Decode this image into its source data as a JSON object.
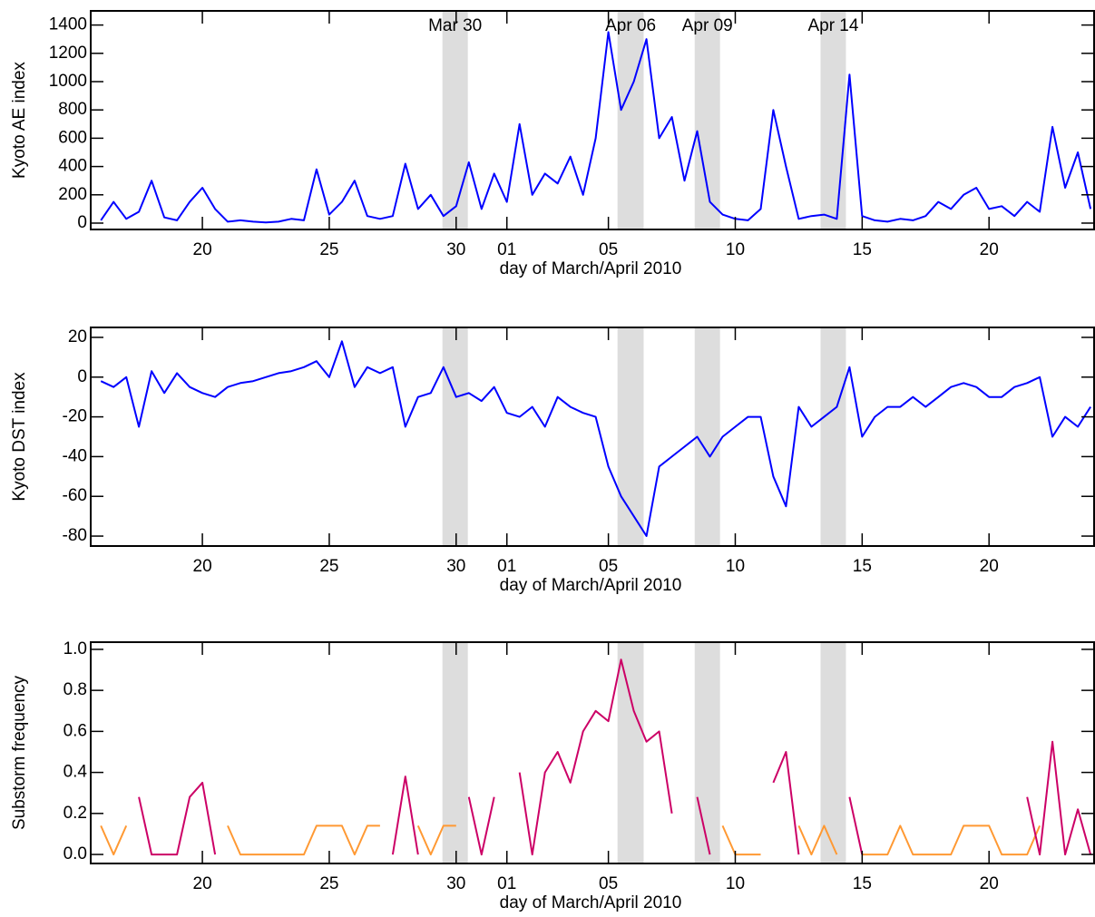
{
  "chart_data": [
    {
      "type": "line",
      "ylabel": "Kyoto AE index",
      "xlabel": "day of March/April 2010",
      "xlim": [
        15.6,
        55.14
      ],
      "ylim": [
        -45,
        1500
      ],
      "xticks": [
        20,
        25,
        30,
        {
          "value": 32,
          "label": "01"
        },
        {
          "value": 36,
          "label": "05"
        },
        {
          "value": 41,
          "label": "10"
        },
        {
          "value": 46,
          "label": "15"
        },
        {
          "value": 51,
          "label": "20"
        }
      ],
      "yticks": [
        0,
        200,
        400,
        600,
        800,
        1000,
        1200,
        1400
      ],
      "bands": [
        {
          "label": "Mar 30",
          "range": [
            29.46,
            30.46
          ]
        },
        {
          "label": "Apr 06",
          "range": [
            36.36,
            37.39
          ]
        },
        {
          "label": "Apr 09",
          "range": [
            39.4,
            40.4
          ]
        },
        {
          "label": "Apr 14",
          "range": [
            44.36,
            45.36
          ]
        }
      ],
      "band_color": "#dddddd",
      "x": [
        16,
        16.5,
        17,
        17.5,
        18,
        18.5,
        19,
        19.5,
        20,
        20.5,
        21,
        21.5,
        22,
        22.5,
        23,
        23.5,
        24,
        24.5,
        25,
        25.5,
        26,
        26.5,
        27,
        27.5,
        28,
        28.5,
        29,
        29.5,
        30,
        30.5,
        31,
        31.5,
        32,
        32.5,
        33,
        33.5,
        34,
        34.5,
        35,
        35.5,
        36,
        36.5,
        37,
        37.5,
        38,
        38.5,
        39,
        39.5,
        40,
        40.5,
        41,
        41.5,
        42,
        42.5,
        43,
        43.5,
        44,
        44.5,
        45,
        45.5,
        46,
        46.5,
        47,
        47.5,
        48,
        48.5,
        49,
        49.5,
        50,
        50.5,
        51,
        51.5,
        52,
        52.5,
        53,
        53.5,
        54,
        54.5,
        55
      ],
      "series": [
        {
          "color": "#0000ff",
          "values": [
            20,
            150,
            30,
            80,
            300,
            40,
            20,
            150,
            250,
            100,
            10,
            20,
            10,
            5,
            10,
            30,
            20,
            380,
            60,
            150,
            300,
            50,
            30,
            50,
            420,
            100,
            200,
            50,
            120,
            430,
            100,
            350,
            150,
            700,
            200,
            350,
            280,
            470,
            200,
            600,
            1350,
            800,
            1000,
            1300,
            600,
            750,
            300,
            650,
            150,
            60,
            30,
            20,
            100,
            800,
            400,
            30,
            50,
            60,
            30,
            1050,
            50,
            20,
            10,
            30,
            20,
            50,
            150,
            100,
            200,
            250,
            100,
            120,
            50,
            150,
            80,
            680,
            250,
            500,
            100
          ]
        }
      ]
    },
    {
      "type": "line",
      "ylabel": "Kyoto DST index",
      "xlabel": "day of March/April 2010",
      "xlim": [
        15.6,
        55.14
      ],
      "ylim": [
        -85,
        25
      ],
      "xticks": [
        20,
        25,
        30,
        {
          "value": 32,
          "label": "01"
        },
        {
          "value": 36,
          "label": "05"
        },
        {
          "value": 41,
          "label": "10"
        },
        {
          "value": 46,
          "label": "15"
        },
        {
          "value": 51,
          "label": "20"
        }
      ],
      "yticks": [
        -80,
        -60,
        -40,
        -20,
        0,
        20
      ],
      "bands": [
        {
          "range": [
            29.46,
            30.46
          ]
        },
        {
          "range": [
            36.36,
            37.39
          ]
        },
        {
          "range": [
            39.4,
            40.4
          ]
        },
        {
          "range": [
            44.36,
            45.36
          ]
        }
      ],
      "band_color": "#dddddd",
      "x": [
        16,
        16.5,
        17,
        17.5,
        18,
        18.5,
        19,
        19.5,
        20,
        20.5,
        21,
        21.5,
        22,
        22.5,
        23,
        23.5,
        24,
        24.5,
        25,
        25.5,
        26,
        26.5,
        27,
        27.5,
        28,
        28.5,
        29,
        29.5,
        30,
        30.5,
        31,
        31.5,
        32,
        32.5,
        33,
        33.5,
        34,
        34.5,
        35,
        35.5,
        36,
        36.5,
        37,
        37.5,
        38,
        38.5,
        39,
        39.5,
        40,
        40.5,
        41,
        41.5,
        42,
        42.5,
        43,
        43.5,
        44,
        44.5,
        45,
        45.5,
        46,
        46.5,
        47,
        47.5,
        48,
        48.5,
        49,
        49.5,
        50,
        50.5,
        51,
        51.5,
        52,
        52.5,
        53,
        53.5,
        54,
        54.5,
        55
      ],
      "series": [
        {
          "color": "#0000ff",
          "values": [
            -2,
            -5,
            0,
            -25,
            3,
            -8,
            2,
            -5,
            -8,
            -10,
            -5,
            -3,
            -2,
            0,
            2,
            3,
            5,
            8,
            0,
            18,
            -5,
            5,
            2,
            5,
            -25,
            -10,
            -8,
            5,
            -10,
            -8,
            -12,
            -5,
            -18,
            -20,
            -15,
            -25,
            -10,
            -15,
            -18,
            -20,
            -45,
            -60,
            -70,
            -80,
            -45,
            -40,
            -35,
            -30,
            -40,
            -30,
            -25,
            -20,
            -20,
            -50,
            -65,
            -15,
            -25,
            -20,
            -15,
            5,
            -30,
            -20,
            -15,
            -15,
            -10,
            -15,
            -10,
            -5,
            -3,
            -5,
            -10,
            -10,
            -5,
            -3,
            0,
            -30,
            -20,
            -25,
            -15
          ]
        }
      ]
    },
    {
      "type": "line",
      "ylabel": "Substorm frequency",
      "xlabel": "day of March/April 2010",
      "xlim": [
        15.6,
        55.14
      ],
      "ylim": [
        -0.044,
        1.035
      ],
      "xticks": [
        20,
        25,
        30,
        {
          "value": 32,
          "label": "01"
        },
        {
          "value": 36,
          "label": "05"
        },
        {
          "value": 41,
          "label": "10"
        },
        {
          "value": 46,
          "label": "15"
        },
        {
          "value": 51,
          "label": "20"
        }
      ],
      "yticks": [
        {
          "value": 0,
          "label": "0.0"
        },
        {
          "value": 0.2,
          "label": "0.2"
        },
        {
          "value": 0.4,
          "label": "0.4"
        },
        {
          "value": 0.6,
          "label": "0.6"
        },
        {
          "value": 0.8,
          "label": "0.8"
        },
        {
          "value": 1,
          "label": "1.0"
        }
      ],
      "bands": [
        {
          "range": [
            29.46,
            30.46
          ]
        },
        {
          "range": [
            36.36,
            37.39
          ]
        },
        {
          "range": [
            39.4,
            40.4
          ]
        },
        {
          "range": [
            44.36,
            45.36
          ]
        }
      ],
      "band_color": "#dddddd",
      "x": [
        16,
        16.5,
        17,
        17.5,
        18,
        18.5,
        19,
        19.5,
        20,
        20.5,
        21,
        21.5,
        22,
        22.5,
        23,
        23.5,
        24,
        24.5,
        25,
        25.5,
        26,
        26.5,
        27,
        27.5,
        28,
        28.5,
        29,
        29.5,
        30,
        30.5,
        31,
        31.5,
        32,
        32.5,
        33,
        33.5,
        34,
        34.5,
        35,
        35.5,
        36,
        36.5,
        37,
        37.5,
        38,
        38.5,
        39,
        39.5,
        40,
        40.5,
        41,
        41.5,
        42,
        42.5,
        43,
        43.5,
        44,
        44.5,
        45,
        45.5,
        46,
        46.5,
        47,
        47.5,
        48,
        48.5,
        49,
        49.5,
        50,
        50.5,
        51,
        51.5,
        52,
        52.5,
        53,
        53.5,
        54,
        54.5,
        55
      ],
      "series": [
        {
          "color": "#ff9933",
          "values": [
            0.14,
            0,
            0.14,
            null,
            null,
            null,
            0,
            null,
            null,
            null,
            0.14,
            0,
            0,
            0,
            0,
            0,
            0,
            0.14,
            0.14,
            0.14,
            0,
            0.14,
            0.14,
            null,
            null,
            0.14,
            0,
            0.14,
            0.14,
            null,
            null,
            null,
            0.14,
            null,
            null,
            null,
            null,
            null,
            null,
            null,
            null,
            null,
            null,
            null,
            null,
            null,
            0.14,
            null,
            null,
            0.14,
            0,
            0,
            0,
            null,
            null,
            0.14,
            0,
            0.14,
            0,
            null,
            0,
            0,
            0,
            0.14,
            0,
            0,
            0,
            0,
            0.14,
            0.14,
            0.14,
            0,
            0,
            0,
            0.14,
            null,
            null,
            null,
            null
          ]
        },
        {
          "color": "#cc0066",
          "values": [
            null,
            null,
            null,
            0.28,
            0,
            0,
            0,
            0.28,
            0.35,
            0,
            null,
            null,
            null,
            null,
            null,
            null,
            null,
            null,
            null,
            null,
            null,
            null,
            null,
            0,
            0.38,
            0,
            null,
            null,
            null,
            0.28,
            0,
            0.28,
            null,
            0.4,
            0,
            0.4,
            0.5,
            0.35,
            0.6,
            0.7,
            0.65,
            0.95,
            0.7,
            0.55,
            0.6,
            0.2,
            null,
            0.28,
            0,
            null,
            null,
            null,
            null,
            0.35,
            0.5,
            0,
            null,
            null,
            null,
            0.28,
            0,
            null,
            null,
            null,
            null,
            null,
            null,
            null,
            null,
            null,
            null,
            null,
            null,
            0.28,
            0,
            0.55,
            0,
            0.22,
            0
          ]
        }
      ]
    }
  ]
}
